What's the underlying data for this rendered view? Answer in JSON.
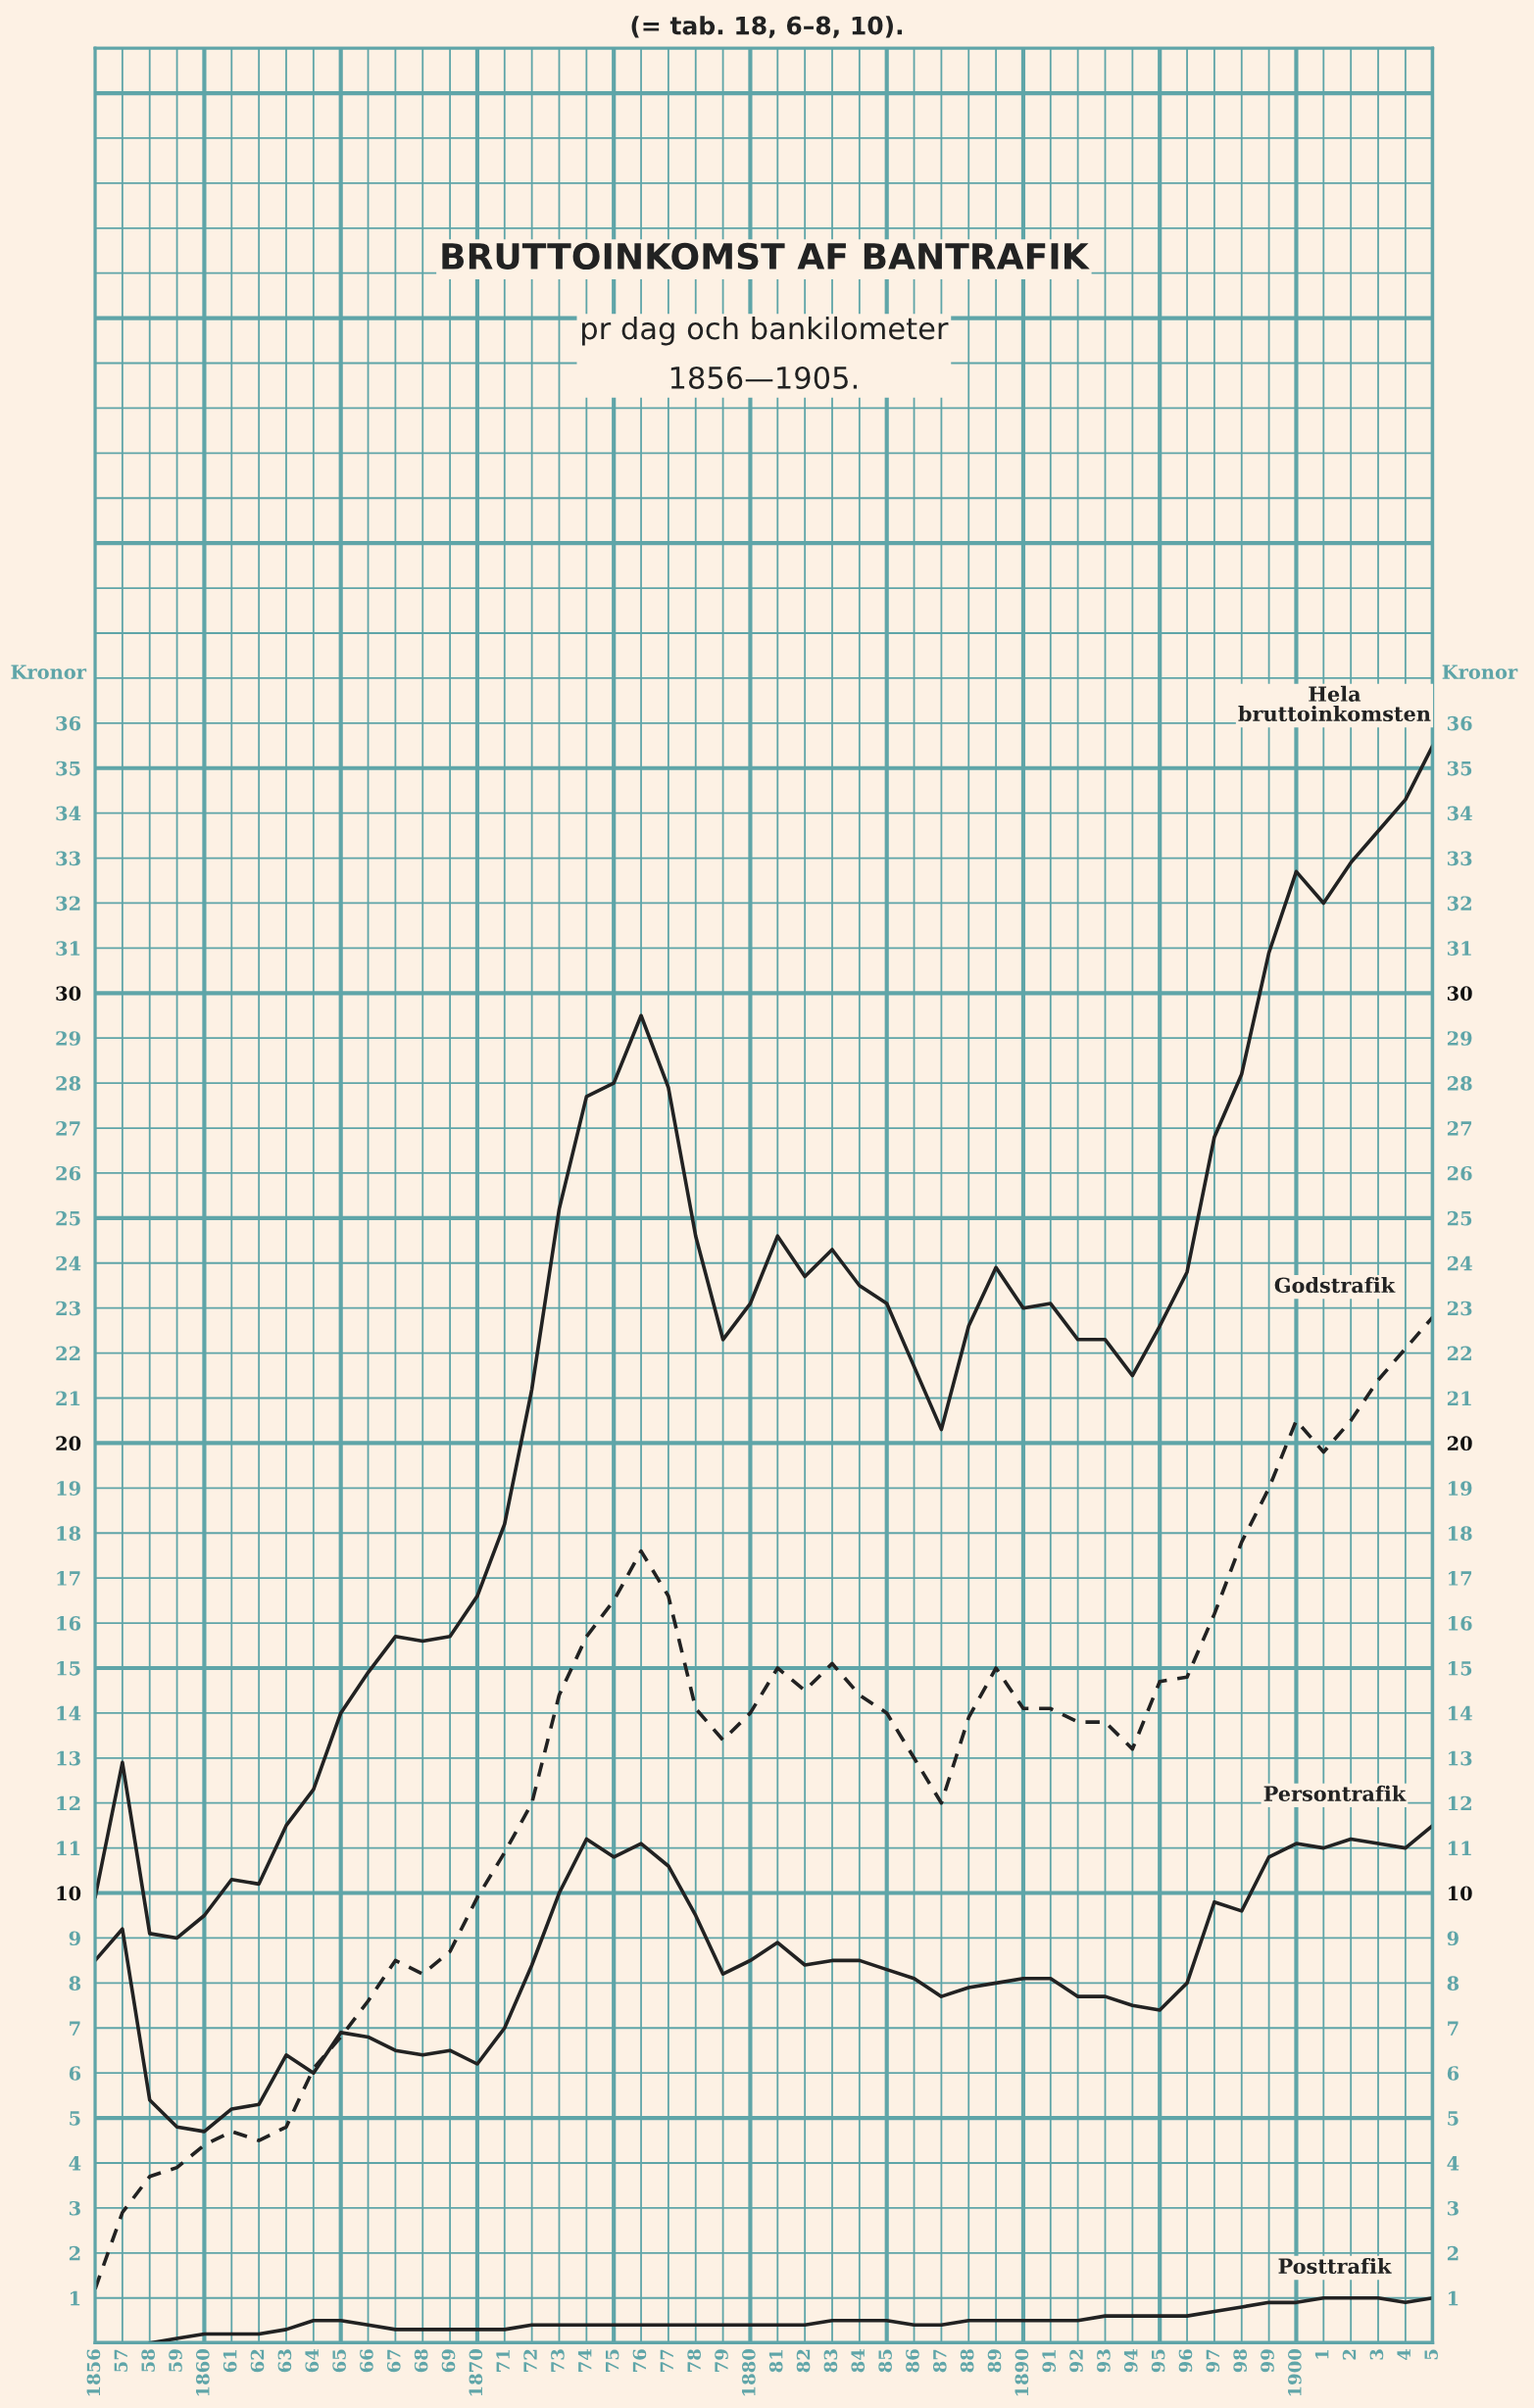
{
  "chart_data": {
    "type": "line",
    "title": "BRUTTOINKOMST AF BANTRAFIK",
    "subtitle": "pr dag och bankilometer\n1856—1905.",
    "annotations": [
      "(= tab. 18, 6–8, 10)."
    ],
    "ylabel": "Kronor",
    "y2label": "Kronor",
    "categories": [
      "1856",
      "57",
      "58",
      "59",
      "1860",
      "61",
      "62",
      "63",
      "64",
      "65",
      "66",
      "67",
      "68",
      "69",
      "1870",
      "71",
      "72",
      "73",
      "74",
      "75",
      "76",
      "77",
      "78",
      "79",
      "1880",
      "81",
      "82",
      "83",
      "84",
      "85",
      "86",
      "87",
      "88",
      "89",
      "1890",
      "91",
      "92",
      "93",
      "94",
      "95",
      "96",
      "97",
      "98",
      "99",
      "1900",
      "1",
      "2",
      "3",
      "4",
      "5"
    ],
    "ylim": [
      0,
      51
    ],
    "yticks": [
      {
        "value": 0,
        "label": null
      },
      1,
      2,
      3,
      4,
      5,
      6,
      7,
      8,
      9,
      10,
      11,
      12,
      13,
      14,
      15,
      16,
      17,
      18,
      19,
      20,
      21,
      22,
      23,
      24,
      25,
      26,
      27,
      28,
      29,
      30,
      31,
      32,
      33,
      34,
      35,
      36,
      {
        "value": 37,
        "label": null
      },
      {
        "value": 38,
        "label": null
      },
      {
        "value": 39,
        "label": null
      },
      {
        "value": 40,
        "label": null
      },
      {
        "value": 41,
        "label": null
      },
      {
        "value": 42,
        "label": null
      },
      {
        "value": 43,
        "label": null
      },
      {
        "value": 44,
        "label": null
      },
      {
        "value": 45,
        "label": null
      },
      {
        "value": 46,
        "label": null
      },
      {
        "value": 47,
        "label": null
      },
      {
        "value": 48,
        "label": null
      },
      {
        "value": 49,
        "label": null
      },
      {
        "value": 50,
        "label": null
      },
      {
        "value": 51,
        "label": null
      }
    ],
    "y2lim": [
      0,
      51
    ],
    "y2ticks": [
      1,
      2,
      3,
      4,
      5,
      6,
      7,
      8,
      9,
      10,
      11,
      12,
      13,
      14,
      15,
      16,
      17,
      18,
      19,
      20,
      21,
      22,
      23,
      24,
      25,
      26,
      27,
      28,
      29,
      30,
      31,
      32,
      33,
      34,
      35,
      36
    ],
    "grid": true,
    "series": [
      {
        "name": "Hela\nbruttoinkomsten",
        "color": "#222222",
        "line_style": "solid",
        "values": [
          9.9,
          12.9,
          9.1,
          9.0,
          9.5,
          10.3,
          10.2,
          11.5,
          12.3,
          14.0,
          14.9,
          15.7,
          15.6,
          15.7,
          16.6,
          18.2,
          21.2,
          25.2,
          27.7,
          28.0,
          29.5,
          27.9,
          24.6,
          22.3,
          23.1,
          24.6,
          23.7,
          24.3,
          23.5,
          23.1,
          21.7,
          20.3,
          22.6,
          23.9,
          23.0,
          23.1,
          22.3,
          22.3,
          21.5,
          22.6,
          23.8,
          26.8,
          28.2,
          30.9,
          32.7,
          32.0,
          32.9,
          33.6,
          34.3,
          35.5
        ]
      },
      {
        "name": "Godstrafik",
        "color": "#222222",
        "line_style": "dashed",
        "values": [
          1.2,
          2.9,
          3.7,
          3.9,
          4.4,
          4.7,
          4.5,
          4.8,
          6.1,
          6.8,
          7.6,
          8.5,
          8.2,
          8.7,
          9.9,
          10.9,
          12.0,
          14.4,
          15.7,
          16.5,
          17.6,
          16.6,
          14.1,
          13.4,
          14.0,
          15.0,
          14.5,
          15.1,
          14.4,
          14.0,
          13.0,
          12.0,
          13.9,
          15.0,
          14.1,
          14.1,
          13.8,
          13.8,
          13.2,
          14.7,
          14.8,
          16.2,
          17.8,
          19.0,
          20.5,
          19.8,
          20.5,
          21.4,
          22.1,
          22.8
        ]
      },
      {
        "name": "Persontrafik",
        "color": "#222222",
        "line_style": "solid",
        "values": [
          8.5,
          9.2,
          5.4,
          4.8,
          4.7,
          5.2,
          5.3,
          6.4,
          6.0,
          6.9,
          6.8,
          6.5,
          6.4,
          6.5,
          6.2,
          7.0,
          8.4,
          10.0,
          11.2,
          10.8,
          11.1,
          10.6,
          9.5,
          8.2,
          8.5,
          8.9,
          8.4,
          8.5,
          8.5,
          8.3,
          8.1,
          7.7,
          7.9,
          8.0,
          8.1,
          8.1,
          7.7,
          7.7,
          7.5,
          7.4,
          8.0,
          9.8,
          9.6,
          10.8,
          11.1,
          11.0,
          11.2,
          11.1,
          11.0,
          11.5
        ]
      },
      {
        "name": "Posttrafik",
        "color": "#222222",
        "line_style": "solid",
        "values": [
          null,
          null,
          0.0,
          0.1,
          0.2,
          0.2,
          0.2,
          0.3,
          0.5,
          0.5,
          0.4,
          0.3,
          0.3,
          0.3,
          0.3,
          0.3,
          0.4,
          0.4,
          0.4,
          0.4,
          0.4,
          0.4,
          0.4,
          0.4,
          0.4,
          0.4,
          0.4,
          0.5,
          0.5,
          0.5,
          0.4,
          0.4,
          0.5,
          0.5,
          0.5,
          0.5,
          0.5,
          0.6,
          0.6,
          0.6,
          0.6,
          0.7,
          0.8,
          0.9,
          0.9,
          1.0,
          1.0,
          1.0,
          0.9,
          1.0
        ]
      }
    ]
  }
}
